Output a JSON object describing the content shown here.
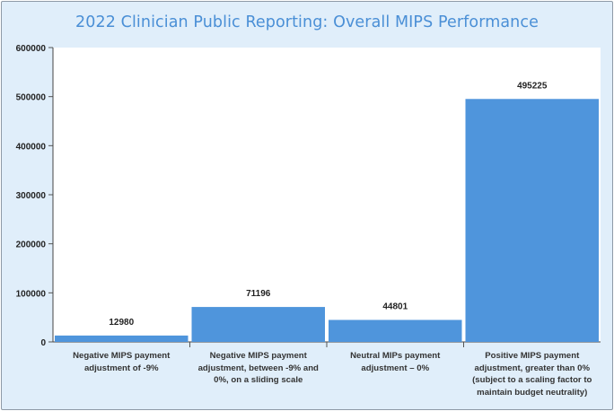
{
  "chart_data": {
    "type": "bar",
    "title": "2022 Clinician Public Reporting: Overall MIPS Performance",
    "categories": [
      "Negative MIPS payment\nadjustment of -9%",
      "Negative MIPS payment\nadjustment, between -9% and\n0%, on a sliding scale",
      "Neutral MIPs payment\nadjustment – 0%",
      "Positive MIPS payment\nadjustment, greater than 0%\n(subject to a scaling factor to\nmaintain budget neutrality)"
    ],
    "values": [
      12980,
      71196,
      44801,
      495225
    ],
    "ylim": [
      0,
      600000
    ],
    "yticks": [
      0,
      100000,
      200000,
      300000,
      400000,
      500000,
      600000
    ],
    "xlabel": "",
    "ylabel": "",
    "grid": false,
    "legend": "none",
    "bar_color": "#4f95dc",
    "plot_background": "#ffffff",
    "frame_background": "#e0eefa",
    "title_color": "#4a8fd6"
  }
}
